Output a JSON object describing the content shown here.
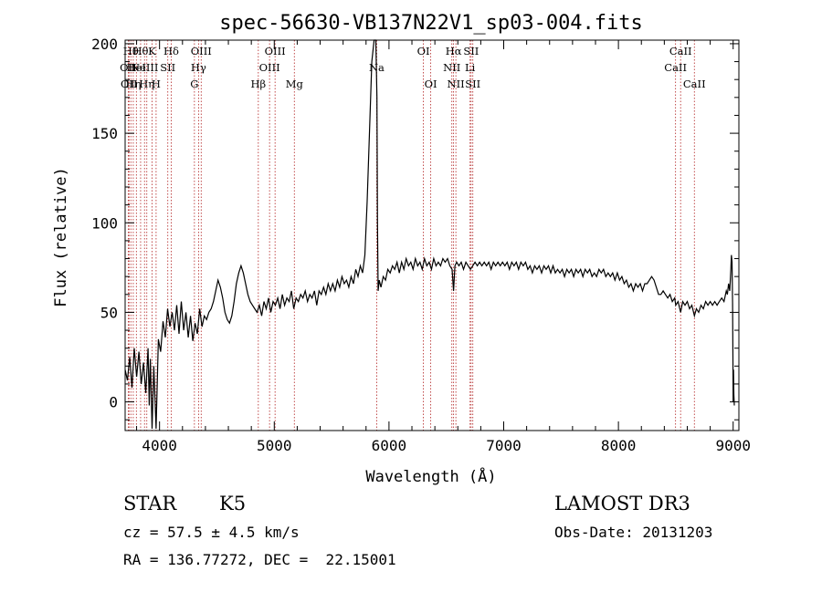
{
  "chart_data": {
    "type": "line",
    "title": "spec-56630-VB137N22V1_sp03-004.fits",
    "xlabel": "Wavelength (Å)",
    "ylabel": "Flux (relative)",
    "xlim": [
      3700,
      9050
    ],
    "ylim": [
      -16,
      202
    ],
    "xticks": [
      4000,
      5000,
      6000,
      7000,
      8000,
      9000
    ],
    "yticks": [
      0,
      50,
      100,
      150,
      200
    ],
    "line_color": "#000000",
    "marker_color": "#b22222",
    "spectral_lines": [
      {
        "wavelength": 3727,
        "label": "OII",
        "row": 1
      },
      {
        "wavelength": 3734,
        "label": "OII",
        "row": 2
      },
      {
        "wavelength": 3750,
        "label": "Hθ",
        "row": 0
      },
      {
        "wavelength": 3771,
        "label": "Hη",
        "row": 2
      },
      {
        "wavelength": 3798,
        "label": "HeI",
        "row": 1
      },
      {
        "wavelength": 3835,
        "label": "Hθ",
        "row": 0
      },
      {
        "wavelength": 3869,
        "label": "NeIII",
        "row": 1
      },
      {
        "wavelength": 3889,
        "label": "Hη",
        "row": 2
      },
      {
        "wavelength": 3934,
        "label": "K",
        "row": 0
      },
      {
        "wavelength": 3970,
        "label": "H",
        "row": 2
      },
      {
        "wavelength": 4072,
        "label": "SII",
        "row": 1
      },
      {
        "wavelength": 4102,
        "label": "Hδ",
        "row": 0
      },
      {
        "wavelength": 4304,
        "label": "G",
        "row": 2
      },
      {
        "wavelength": 4340,
        "label": "Hγ",
        "row": 1
      },
      {
        "wavelength": 4363,
        "label": "OIII",
        "row": 0
      },
      {
        "wavelength": 4861,
        "label": "Hβ",
        "row": 2
      },
      {
        "wavelength": 4959,
        "label": "OIII",
        "row": 1
      },
      {
        "wavelength": 5007,
        "label": "OIII",
        "row": 0
      },
      {
        "wavelength": 5175,
        "label": "Mg",
        "row": 2
      },
      {
        "wavelength": 5893,
        "label": "Na",
        "row": 1
      },
      {
        "wavelength": 6300,
        "label": "OI",
        "row": 0
      },
      {
        "wavelength": 6364,
        "label": "OI",
        "row": 2
      },
      {
        "wavelength": 6548,
        "label": "NII",
        "row": 1
      },
      {
        "wavelength": 6563,
        "label": "Hα",
        "row": 0
      },
      {
        "wavelength": 6583,
        "label": "NII",
        "row": 2
      },
      {
        "wavelength": 6707,
        "label": "Li",
        "row": 1
      },
      {
        "wavelength": 6716,
        "label": "SII",
        "row": 0
      },
      {
        "wavelength": 6731,
        "label": "SII",
        "row": 2
      },
      {
        "wavelength": 8498,
        "label": "CaII",
        "row": 1
      },
      {
        "wavelength": 8542,
        "label": "CaII",
        "row": 0
      },
      {
        "wavelength": 8662,
        "label": "CaII",
        "row": 2
      }
    ],
    "series": [
      {
        "name": "flux",
        "points": [
          [
            3700,
            18
          ],
          [
            3720,
            12
          ],
          [
            3740,
            25
          ],
          [
            3760,
            8
          ],
          [
            3780,
            30
          ],
          [
            3800,
            14
          ],
          [
            3820,
            28
          ],
          [
            3840,
            10
          ],
          [
            3860,
            22
          ],
          [
            3880,
            5
          ],
          [
            3900,
            30
          ],
          [
            3910,
            -2
          ],
          [
            3920,
            24
          ],
          [
            3935,
            -15
          ],
          [
            3950,
            20
          ],
          [
            3970,
            -15
          ],
          [
            3990,
            35
          ],
          [
            4010,
            28
          ],
          [
            4030,
            45
          ],
          [
            4050,
            36
          ],
          [
            4070,
            52
          ],
          [
            4090,
            42
          ],
          [
            4110,
            50
          ],
          [
            4130,
            40
          ],
          [
            4150,
            54
          ],
          [
            4170,
            38
          ],
          [
            4190,
            56
          ],
          [
            4210,
            40
          ],
          [
            4230,
            50
          ],
          [
            4250,
            36
          ],
          [
            4270,
            48
          ],
          [
            4290,
            34
          ],
          [
            4310,
            44
          ],
          [
            4330,
            38
          ],
          [
            4350,
            52
          ],
          [
            4370,
            42
          ],
          [
            4390,
            48
          ],
          [
            4410,
            46
          ],
          [
            4430,
            50
          ],
          [
            4450,
            52
          ],
          [
            4470,
            56
          ],
          [
            4490,
            62
          ],
          [
            4510,
            68
          ],
          [
            4530,
            64
          ],
          [
            4550,
            58
          ],
          [
            4570,
            50
          ],
          [
            4590,
            46
          ],
          [
            4610,
            44
          ],
          [
            4630,
            48
          ],
          [
            4650,
            56
          ],
          [
            4670,
            66
          ],
          [
            4690,
            72
          ],
          [
            4710,
            76
          ],
          [
            4730,
            72
          ],
          [
            4750,
            66
          ],
          [
            4770,
            60
          ],
          [
            4790,
            56
          ],
          [
            4810,
            54
          ],
          [
            4830,
            52
          ],
          [
            4850,
            50
          ],
          [
            4870,
            54
          ],
          [
            4890,
            48
          ],
          [
            4910,
            56
          ],
          [
            4930,
            52
          ],
          [
            4950,
            58
          ],
          [
            4970,
            50
          ],
          [
            4990,
            56
          ],
          [
            5010,
            54
          ],
          [
            5030,
            58
          ],
          [
            5050,
            52
          ],
          [
            5070,
            60
          ],
          [
            5090,
            54
          ],
          [
            5110,
            58
          ],
          [
            5130,
            56
          ],
          [
            5150,
            62
          ],
          [
            5170,
            52
          ],
          [
            5190,
            58
          ],
          [
            5210,
            56
          ],
          [
            5230,
            60
          ],
          [
            5250,
            58
          ],
          [
            5270,
            62
          ],
          [
            5290,
            56
          ],
          [
            5310,
            60
          ],
          [
            5330,
            58
          ],
          [
            5350,
            62
          ],
          [
            5370,
            54
          ],
          [
            5390,
            62
          ],
          [
            5410,
            60
          ],
          [
            5430,
            64
          ],
          [
            5450,
            60
          ],
          [
            5470,
            66
          ],
          [
            5490,
            62
          ],
          [
            5510,
            66
          ],
          [
            5530,
            62
          ],
          [
            5550,
            68
          ],
          [
            5570,
            64
          ],
          [
            5590,
            70
          ],
          [
            5610,
            66
          ],
          [
            5630,
            68
          ],
          [
            5650,
            64
          ],
          [
            5670,
            70
          ],
          [
            5690,
            66
          ],
          [
            5710,
            74
          ],
          [
            5730,
            70
          ],
          [
            5750,
            76
          ],
          [
            5770,
            72
          ],
          [
            5790,
            82
          ],
          [
            5810,
            112
          ],
          [
            5830,
            150
          ],
          [
            5850,
            190
          ],
          [
            5870,
            202
          ],
          [
            5885,
            202
          ],
          [
            5895,
            170
          ],
          [
            5900,
            100
          ],
          [
            5905,
            62
          ],
          [
            5915,
            68
          ],
          [
            5930,
            64
          ],
          [
            5950,
            70
          ],
          [
            5970,
            68
          ],
          [
            5990,
            74
          ],
          [
            6010,
            72
          ],
          [
            6030,
            76
          ],
          [
            6050,
            74
          ],
          [
            6070,
            78
          ],
          [
            6090,
            72
          ],
          [
            6110,
            78
          ],
          [
            6130,
            74
          ],
          [
            6150,
            80
          ],
          [
            6170,
            76
          ],
          [
            6190,
            78
          ],
          [
            6210,
            74
          ],
          [
            6230,
            80
          ],
          [
            6250,
            76
          ],
          [
            6270,
            78
          ],
          [
            6290,
            74
          ],
          [
            6310,
            80
          ],
          [
            6330,
            76
          ],
          [
            6350,
            78
          ],
          [
            6370,
            74
          ],
          [
            6390,
            80
          ],
          [
            6410,
            76
          ],
          [
            6430,
            78
          ],
          [
            6450,
            76
          ],
          [
            6470,
            80
          ],
          [
            6490,
            78
          ],
          [
            6510,
            80
          ],
          [
            6530,
            76
          ],
          [
            6550,
            74
          ],
          [
            6563,
            62
          ],
          [
            6575,
            76
          ],
          [
            6590,
            78
          ],
          [
            6610,
            76
          ],
          [
            6630,
            78
          ],
          [
            6650,
            74
          ],
          [
            6670,
            78
          ],
          [
            6690,
            76
          ],
          [
            6710,
            74
          ],
          [
            6730,
            76
          ],
          [
            6750,
            78
          ],
          [
            6770,
            76
          ],
          [
            6790,
            78
          ],
          [
            6810,
            76
          ],
          [
            6830,
            78
          ],
          [
            6850,
            76
          ],
          [
            6870,
            78
          ],
          [
            6890,
            74
          ],
          [
            6910,
            78
          ],
          [
            6930,
            76
          ],
          [
            6950,
            78
          ],
          [
            6970,
            76
          ],
          [
            6990,
            78
          ],
          [
            7010,
            76
          ],
          [
            7030,
            78
          ],
          [
            7050,
            74
          ],
          [
            7070,
            78
          ],
          [
            7090,
            76
          ],
          [
            7110,
            78
          ],
          [
            7130,
            74
          ],
          [
            7150,
            78
          ],
          [
            7170,
            76
          ],
          [
            7190,
            78
          ],
          [
            7210,
            74
          ],
          [
            7230,
            76
          ],
          [
            7250,
            72
          ],
          [
            7270,
            76
          ],
          [
            7290,
            74
          ],
          [
            7310,
            76
          ],
          [
            7330,
            72
          ],
          [
            7350,
            76
          ],
          [
            7370,
            74
          ],
          [
            7390,
            76
          ],
          [
            7410,
            72
          ],
          [
            7430,
            76
          ],
          [
            7450,
            72
          ],
          [
            7470,
            74
          ],
          [
            7490,
            72
          ],
          [
            7510,
            74
          ],
          [
            7530,
            70
          ],
          [
            7550,
            74
          ],
          [
            7570,
            72
          ],
          [
            7590,
            74
          ],
          [
            7610,
            70
          ],
          [
            7630,
            74
          ],
          [
            7650,
            72
          ],
          [
            7670,
            74
          ],
          [
            7690,
            70
          ],
          [
            7710,
            74
          ],
          [
            7730,
            72
          ],
          [
            7750,
            74
          ],
          [
            7770,
            70
          ],
          [
            7790,
            72
          ],
          [
            7810,
            70
          ],
          [
            7830,
            74
          ],
          [
            7850,
            72
          ],
          [
            7870,
            74
          ],
          [
            7890,
            70
          ],
          [
            7910,
            72
          ],
          [
            7930,
            70
          ],
          [
            7950,
            72
          ],
          [
            7970,
            68
          ],
          [
            7990,
            72
          ],
          [
            8010,
            68
          ],
          [
            8030,
            70
          ],
          [
            8050,
            66
          ],
          [
            8070,
            68
          ],
          [
            8090,
            64
          ],
          [
            8110,
            66
          ],
          [
            8130,
            62
          ],
          [
            8150,
            66
          ],
          [
            8170,
            64
          ],
          [
            8190,
            66
          ],
          [
            8210,
            62
          ],
          [
            8230,
            66
          ],
          [
            8250,
            66
          ],
          [
            8270,
            68
          ],
          [
            8290,
            70
          ],
          [
            8310,
            68
          ],
          [
            8330,
            64
          ],
          [
            8350,
            60
          ],
          [
            8370,
            60
          ],
          [
            8390,
            62
          ],
          [
            8410,
            60
          ],
          [
            8430,
            58
          ],
          [
            8450,
            60
          ],
          [
            8470,
            56
          ],
          [
            8490,
            58
          ],
          [
            8500,
            54
          ],
          [
            8520,
            56
          ],
          [
            8542,
            50
          ],
          [
            8560,
            56
          ],
          [
            8580,
            54
          ],
          [
            8600,
            56
          ],
          [
            8620,
            52
          ],
          [
            8640,
            54
          ],
          [
            8662,
            48
          ],
          [
            8680,
            52
          ],
          [
            8700,
            50
          ],
          [
            8720,
            54
          ],
          [
            8740,
            52
          ],
          [
            8760,
            56
          ],
          [
            8780,
            54
          ],
          [
            8800,
            56
          ],
          [
            8820,
            54
          ],
          [
            8840,
            56
          ],
          [
            8860,
            54
          ],
          [
            8880,
            56
          ],
          [
            8900,
            58
          ],
          [
            8920,
            56
          ],
          [
            8940,
            62
          ],
          [
            8950,
            60
          ],
          [
            8960,
            66
          ],
          [
            8970,
            62
          ],
          [
            8980,
            74
          ],
          [
            8985,
            82
          ],
          [
            8990,
            78
          ],
          [
            8995,
            55
          ],
          [
            8998,
            22
          ],
          [
            9000,
            0
          ],
          [
            9003,
            18
          ],
          [
            9006,
            4
          ],
          [
            9010,
            -2
          ]
        ]
      }
    ]
  },
  "info": {
    "object_class": "STAR",
    "subclass": "K5",
    "redshift": "cz = 57.5 ± 4.5 km/s",
    "coords": "RA = 136.77272, DEC =  22.15001",
    "survey": "LAMOST DR3",
    "obs_date": "Obs-Date: 20131203"
  }
}
